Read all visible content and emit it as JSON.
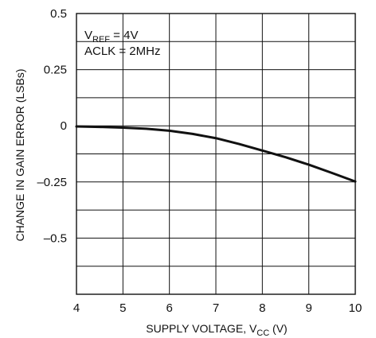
{
  "chart_data": {
    "type": "line",
    "xlabel": "SUPPLY VOLTAGE, VCC (V)",
    "ylabel": "CHANGE IN GAIN ERROR (LSBs)",
    "xlim": [
      4,
      10
    ],
    "ylim": [
      -0.75,
      0.5
    ],
    "x_ticks": [
      4,
      5,
      6,
      7,
      8,
      9,
      10
    ],
    "y_ticks": [
      0.5,
      0.25,
      0,
      -0.25,
      -0.5
    ],
    "y_tick_labels": [
      "0.5",
      "0.25",
      "0",
      "–0.25",
      "–0.5"
    ],
    "grid": true,
    "annotations": [
      "VREF = 4V",
      "ACLK = 2MHz"
    ],
    "series": [
      {
        "x": [
          4,
          4.5,
          5,
          5.5,
          6,
          6.5,
          7,
          7.5,
          8,
          8.5,
          9,
          9.5,
          10
        ],
        "y": [
          -0.003,
          -0.005,
          -0.008,
          -0.013,
          -0.022,
          -0.036,
          -0.055,
          -0.081,
          -0.11,
          -0.14,
          -0.173,
          -0.21,
          -0.248
        ]
      }
    ],
    "colors": {
      "line": "#111111",
      "grid": "#111111"
    }
  },
  "labels": {
    "xlabel_main": "SUPPLY VOLTAGE, V",
    "xlabel_sub": "CC",
    "xlabel_tail": " (V)",
    "vref_main": "V",
    "vref_sub": "REF",
    "vref_tail": " = 4V",
    "aclk": "ACLK = 2MHz",
    "ylabel": "CHANGE IN GAIN ERROR (LSBs)"
  }
}
